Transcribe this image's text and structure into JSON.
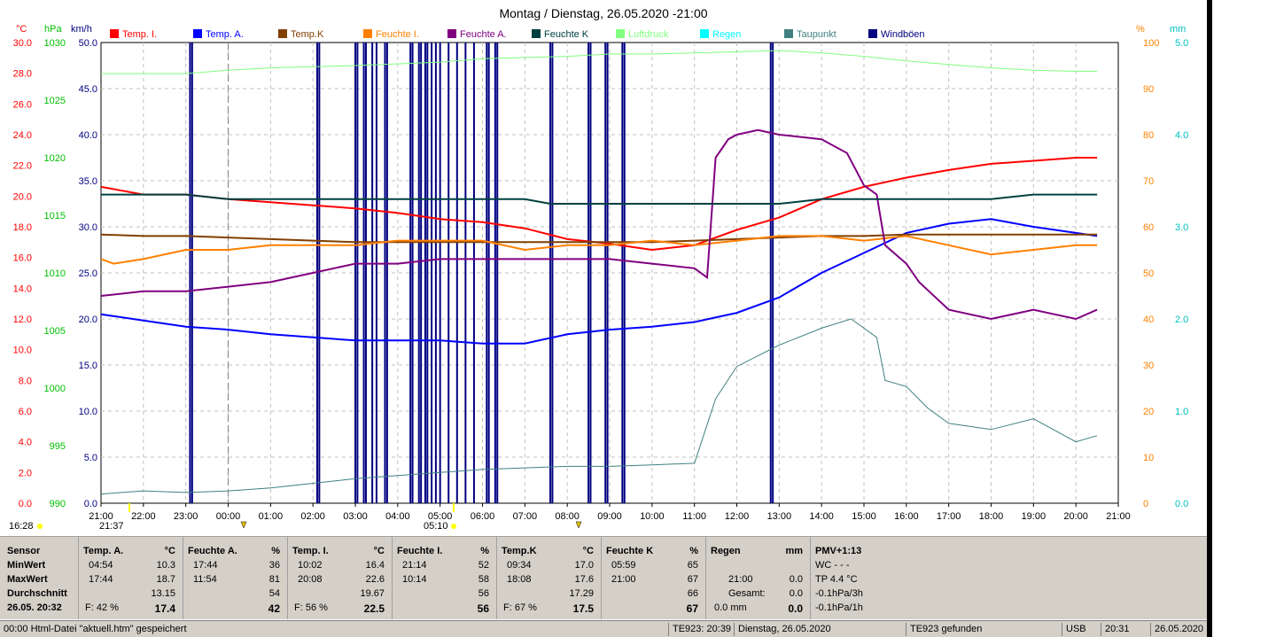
{
  "chart_data": {
    "type": "line",
    "title": "Montag / Dienstag, 26.05.2020  -21:00",
    "axes": {
      "temp": {
        "unit": "°C",
        "min": 0,
        "max": 30,
        "ticks": [
          "30.0",
          "28.0",
          "26.0",
          "24.0",
          "22.0",
          "20.0",
          "18.0",
          "16.0",
          "14.0",
          "12.0",
          "10.0",
          "8.0",
          "6.0",
          "4.0",
          "2.0",
          "0.0"
        ],
        "color": "#ff0000"
      },
      "pressure": {
        "unit": "hPa",
        "min": 990,
        "max": 1030,
        "ticks": [
          "1030",
          "1025",
          "1020",
          "1015",
          "1010",
          "1005",
          "1000",
          "995",
          "990"
        ],
        "color": "#00c000"
      },
      "wind": {
        "unit": "km/h",
        "min": 0,
        "max": 50,
        "ticks": [
          "50.0",
          "45.0",
          "40.0",
          "35.0",
          "30.0",
          "25.0",
          "20.0",
          "15.0",
          "10.0",
          "5.0",
          "0.0"
        ],
        "color": "#000080"
      },
      "humidity": {
        "unit": "%",
        "min": 0,
        "max": 100,
        "ticks": [
          "100",
          "90",
          "80",
          "70",
          "60",
          "50",
          "40",
          "30",
          "20",
          "10",
          "0"
        ],
        "color": "#ff8000"
      },
      "rain": {
        "unit": "mm",
        "min": 0,
        "max": 5,
        "ticks": [
          "5.0",
          "4.0",
          "3.0",
          "2.0",
          "1.0",
          "0.0"
        ],
        "color": "#00c0c0"
      }
    },
    "x_ticks": [
      "21:00",
      "22:00",
      "23:00",
      "00:00",
      "01:00",
      "02:00",
      "03:00",
      "04:00",
      "05:00",
      "06:00",
      "07:00",
      "08:00",
      "09:00",
      "10:00",
      "11:00",
      "12:00",
      "13:00",
      "14:00",
      "15:00",
      "16:00",
      "17:00",
      "18:00",
      "19:00",
      "20:00",
      "21:00"
    ],
    "legend": [
      {
        "name": "Temp. I.",
        "color": "#ff0000"
      },
      {
        "name": "Temp. A.",
        "color": "#0000ff"
      },
      {
        "name": "Temp.K",
        "color": "#804000"
      },
      {
        "name": "Feuchte I.",
        "color": "#ff8000"
      },
      {
        "name": "Feuchte A.",
        "color": "#800080"
      },
      {
        "name": "Feuchte K",
        "color": "#004040"
      },
      {
        "name": "Luftdruck",
        "color": "#80ff80"
      },
      {
        "name": "Regen",
        "color": "#00ffff"
      },
      {
        "name": "Taupunkt",
        "color": "#408080"
      },
      {
        "name": "Windböen",
        "color": "#000080"
      }
    ],
    "markers": {
      "sunrise_left": "16:28",
      "sunset": "21:37",
      "sunrise": "05:10"
    },
    "series": [
      {
        "name": "Temp. I.",
        "axis": "temp",
        "points": [
          [
            0,
            20.6
          ],
          [
            1,
            20.1
          ],
          [
            2,
            20.1
          ],
          [
            3,
            19.8
          ],
          [
            4,
            19.6
          ],
          [
            5,
            19.4
          ],
          [
            6,
            19.2
          ],
          [
            7,
            18.9
          ],
          [
            8,
            18.5
          ],
          [
            9,
            18.3
          ],
          [
            10,
            17.9
          ],
          [
            11,
            17.2
          ],
          [
            12,
            16.9
          ],
          [
            13,
            16.5
          ],
          [
            14,
            16.8
          ],
          [
            15,
            17.8
          ],
          [
            16,
            18.6
          ],
          [
            17,
            19.8
          ],
          [
            18,
            20.6
          ],
          [
            19,
            21.2
          ],
          [
            20,
            21.7
          ],
          [
            21,
            22.1
          ],
          [
            22,
            22.3
          ],
          [
            23,
            22.5
          ],
          [
            23.5,
            22.5
          ]
        ]
      },
      {
        "name": "Temp. A.",
        "axis": "temp",
        "points": [
          [
            0,
            12.3
          ],
          [
            1,
            11.9
          ],
          [
            2,
            11.5
          ],
          [
            3,
            11.3
          ],
          [
            4,
            11.0
          ],
          [
            5,
            10.8
          ],
          [
            6,
            10.6
          ],
          [
            7,
            10.6
          ],
          [
            8,
            10.6
          ],
          [
            9,
            10.4
          ],
          [
            10,
            10.4
          ],
          [
            11,
            11.0
          ],
          [
            12,
            11.3
          ],
          [
            13,
            11.5
          ],
          [
            14,
            11.8
          ],
          [
            15,
            12.4
          ],
          [
            16,
            13.4
          ],
          [
            17,
            15.0
          ],
          [
            18,
            16.3
          ],
          [
            19,
            17.6
          ],
          [
            20,
            18.2
          ],
          [
            21,
            18.5
          ],
          [
            22,
            18.0
          ],
          [
            23,
            17.6
          ],
          [
            23.5,
            17.4
          ]
        ]
      },
      {
        "name": "Temp.K",
        "axis": "temp",
        "points": [
          [
            0,
            17.5
          ],
          [
            1,
            17.4
          ],
          [
            2,
            17.4
          ],
          [
            3,
            17.3
          ],
          [
            4,
            17.2
          ],
          [
            5,
            17.1
          ],
          [
            6,
            17.0
          ],
          [
            7,
            17.0
          ],
          [
            8,
            17.0
          ],
          [
            9,
            17.0
          ],
          [
            10,
            17.0
          ],
          [
            11,
            17.0
          ],
          [
            12,
            17.0
          ],
          [
            13,
            17.0
          ],
          [
            14,
            17.1
          ],
          [
            15,
            17.2
          ],
          [
            16,
            17.3
          ],
          [
            17,
            17.4
          ],
          [
            18,
            17.4
          ],
          [
            19,
            17.5
          ],
          [
            20,
            17.5
          ],
          [
            21,
            17.5
          ],
          [
            22,
            17.5
          ],
          [
            23,
            17.5
          ],
          [
            23.5,
            17.5
          ]
        ]
      },
      {
        "name": "Feuchte I.",
        "axis": "humidity",
        "points": [
          [
            0,
            53
          ],
          [
            0.3,
            52
          ],
          [
            1,
            53
          ],
          [
            2,
            55
          ],
          [
            3,
            55
          ],
          [
            4,
            56
          ],
          [
            5,
            56
          ],
          [
            6,
            56
          ],
          [
            7,
            57
          ],
          [
            8,
            57
          ],
          [
            9,
            57
          ],
          [
            10,
            55
          ],
          [
            11,
            56
          ],
          [
            12,
            56
          ],
          [
            13,
            57
          ],
          [
            14,
            56
          ],
          [
            15,
            57
          ],
          [
            16,
            58
          ],
          [
            17,
            58
          ],
          [
            18,
            57
          ],
          [
            19,
            58
          ],
          [
            20,
            56
          ],
          [
            21,
            54
          ],
          [
            22,
            55
          ],
          [
            23,
            56
          ],
          [
            23.5,
            56
          ]
        ]
      },
      {
        "name": "Feuchte A.",
        "axis": "humidity",
        "points": [
          [
            0,
            45
          ],
          [
            1,
            46
          ],
          [
            2,
            46
          ],
          [
            3,
            47
          ],
          [
            4,
            48
          ],
          [
            5,
            50
          ],
          [
            6,
            52
          ],
          [
            7,
            52
          ],
          [
            8,
            53
          ],
          [
            9,
            53
          ],
          [
            10,
            53
          ],
          [
            11,
            53
          ],
          [
            12,
            53
          ],
          [
            13,
            52
          ],
          [
            14,
            51
          ],
          [
            14.3,
            49
          ],
          [
            14.5,
            75
          ],
          [
            14.8,
            79
          ],
          [
            15,
            80
          ],
          [
            15.5,
            81
          ],
          [
            16,
            80
          ],
          [
            17,
            79
          ],
          [
            17.6,
            76
          ],
          [
            18,
            69
          ],
          [
            18.3,
            67
          ],
          [
            18.5,
            56
          ],
          [
            19,
            52
          ],
          [
            19.3,
            48
          ],
          [
            20,
            42
          ],
          [
            21,
            40
          ],
          [
            22,
            42
          ],
          [
            23,
            40
          ],
          [
            23.5,
            42
          ]
        ]
      },
      {
        "name": "Feuchte K",
        "axis": "humidity",
        "points": [
          [
            0,
            67
          ],
          [
            2,
            67
          ],
          [
            3,
            66
          ],
          [
            4,
            66
          ],
          [
            6,
            66
          ],
          [
            8,
            66
          ],
          [
            9,
            66
          ],
          [
            10,
            66
          ],
          [
            10.6,
            65
          ],
          [
            12,
            65
          ],
          [
            13,
            65
          ],
          [
            14,
            65
          ],
          [
            16,
            65
          ],
          [
            17,
            66
          ],
          [
            19,
            66
          ],
          [
            20,
            66
          ],
          [
            21,
            66
          ],
          [
            22,
            67
          ],
          [
            23,
            67
          ],
          [
            23.5,
            67
          ]
        ]
      },
      {
        "name": "Luftdruck",
        "axis": "pressure",
        "points": [
          [
            0,
            1027.3
          ],
          [
            2,
            1027.3
          ],
          [
            3,
            1027.6
          ],
          [
            4,
            1027.8
          ],
          [
            6,
            1028.0
          ],
          [
            8,
            1028.3
          ],
          [
            9,
            1028.6
          ],
          [
            10,
            1028.7
          ],
          [
            11,
            1028.8
          ],
          [
            12,
            1029.0
          ],
          [
            13,
            1029.0
          ],
          [
            14,
            1029.1
          ],
          [
            15,
            1029.2
          ],
          [
            16,
            1029.3
          ],
          [
            17,
            1029.1
          ],
          [
            18,
            1028.8
          ],
          [
            19,
            1028.4
          ],
          [
            20,
            1028.1
          ],
          [
            21,
            1027.8
          ],
          [
            22,
            1027.6
          ],
          [
            23,
            1027.5
          ],
          [
            23.5,
            1027.5
          ]
        ]
      },
      {
        "name": "Taupunkt",
        "axis": "temp",
        "points": [
          [
            0,
            0.6
          ],
          [
            1,
            0.8
          ],
          [
            2,
            0.7
          ],
          [
            3,
            0.8
          ],
          [
            4,
            1.0
          ],
          [
            5,
            1.3
          ],
          [
            6,
            1.6
          ],
          [
            7,
            1.8
          ],
          [
            8,
            2.0
          ],
          [
            9,
            2.2
          ],
          [
            10,
            2.3
          ],
          [
            11,
            2.4
          ],
          [
            12,
            2.4
          ],
          [
            13,
            2.5
          ],
          [
            14,
            2.6
          ],
          [
            14.5,
            6.8
          ],
          [
            15,
            8.9
          ],
          [
            15.5,
            9.6
          ],
          [
            16,
            10.3
          ],
          [
            17,
            11.4
          ],
          [
            17.7,
            12.0
          ],
          [
            18.3,
            10.8
          ],
          [
            18.5,
            8.0
          ],
          [
            19,
            7.6
          ],
          [
            19.5,
            6.2
          ],
          [
            20,
            5.2
          ],
          [
            21,
            4.8
          ],
          [
            22,
            5.5
          ],
          [
            23,
            4.0
          ],
          [
            23.5,
            4.4
          ]
        ]
      }
    ],
    "gust_times": [
      2.1,
      2.15,
      5.1,
      5.15,
      6.0,
      6.05,
      6.2,
      6.25,
      6.4,
      6.5,
      6.7,
      6.75,
      7.3,
      7.35,
      7.5,
      7.55,
      7.65,
      7.7,
      7.8,
      7.9,
      8.0,
      8.2,
      8.4,
      8.6,
      8.8,
      9.1,
      9.15,
      9.3,
      9.35,
      10.6,
      10.65,
      11.5,
      11.55,
      11.9,
      11.95,
      12.3,
      12.35,
      15.8,
      15.85
    ],
    "gust_value": 50
  },
  "stats": {
    "sensor": {
      "head": "Sensor",
      "minwert": "MinWert",
      "maxwert": "MaxWert",
      "durchschnitt": "Durchschnitt",
      "now": "26.05. 20:32"
    },
    "temp_a": {
      "head": "Temp. A.",
      "unit": "°C",
      "min_time": "04:54",
      "min": "10.3",
      "max_time": "17:44",
      "max": "18.7",
      "avg": "13.15",
      "f": "F: 42 %",
      "now": "17.4"
    },
    "feuchte_a": {
      "head": "Feuchte A.",
      "unit": "%",
      "min_time": "17:44",
      "min": "36",
      "max_time": "11:54",
      "max": "81",
      "avg": "54",
      "now": "42"
    },
    "temp_i": {
      "head": "Temp. I.",
      "unit": "°C",
      "min_time": "10:02",
      "min": "16.4",
      "max_time": "20:08",
      "max": "22.6",
      "avg": "19.67",
      "f": "F: 56 %",
      "now": "22.5"
    },
    "feuchte_i": {
      "head": "Feuchte I.",
      "unit": "%",
      "min_time": "21:14",
      "min": "52",
      "max_time": "10:14",
      "max": "58",
      "avg": "56",
      "now": "56"
    },
    "temp_k": {
      "head": "Temp.K",
      "unit": "°C",
      "min_time": "09:34",
      "min": "17.0",
      "max_time": "18:08",
      "max": "17.6",
      "avg": "17.29",
      "f": "F: 67 %",
      "now": "17.5"
    },
    "feuchte_k": {
      "head": "Feuchte K",
      "unit": "%",
      "min_time": "05:59",
      "min": "65",
      "max_time": "21:00",
      "max": "67",
      "avg": "66",
      "now": "67"
    },
    "regen": {
      "head": "Regen",
      "unit": "mm",
      "t": "21:00",
      "v1": "0.0",
      "gesamt_label": "Gesamt:",
      "gesamt": "0.0",
      "last": "0.0 mm",
      "now": "0.0"
    },
    "pmv": {
      "head": "PMV+1:13",
      "wc": "WC - - -",
      "tp": "TP 4.4 °C",
      "p3h": "-0.1hPa/3h",
      "p1h": "-0.1hPa/1h"
    }
  },
  "status": {
    "msg": "00:00  Html-Datei  \"aktuell.htm\"  gespeichert",
    "te": "TE923: 20:39",
    "day": "Dienstag, 26.05.2020",
    "found": "TE923 gefunden",
    "usb": "USB",
    "time": "20:31",
    "date": "26.05.2020"
  }
}
